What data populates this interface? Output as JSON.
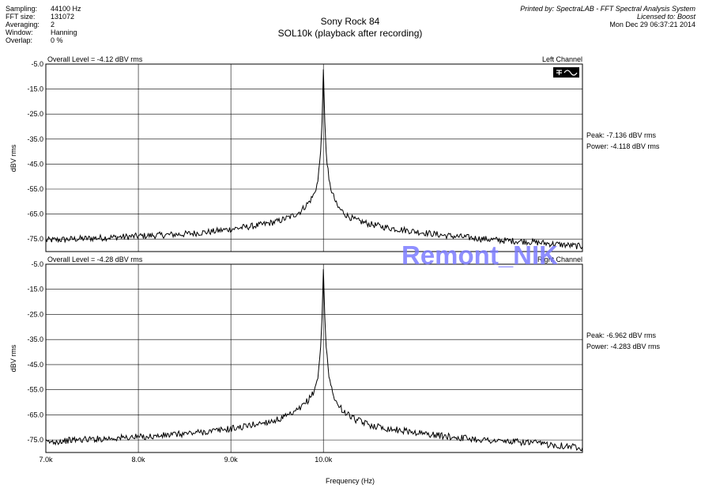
{
  "header": {
    "params": [
      {
        "label": "Sampling:",
        "value": "44100 Hz"
      },
      {
        "label": "FFT size:",
        "value": "131072"
      },
      {
        "label": "Averaging:",
        "value": "2"
      },
      {
        "label": "Window:",
        "value": "Hanning"
      },
      {
        "label": "Overlap:",
        "value": "0 %"
      }
    ],
    "title": "Sony Rock 84",
    "subtitle": "SOL10k (playback after recording)",
    "printed_by": "Printed by: SpectraLAB - FFT Spectral Analysis System",
    "licensed_to": "Licensed to: Boost",
    "timestamp": "Mon Dec 29 06:37:21 2014"
  },
  "watermark": "Remont_NIK",
  "colors": {
    "trace": "#000000",
    "grid": "#000000",
    "watermark": "#7b7bff"
  },
  "panel_icon": "spectrum-view-icon",
  "chart_data": [
    {
      "type": "line",
      "channel": "Left Channel",
      "overall_level": "Overall Level = -4.12 dBV rms",
      "ylabel": "dBV rms",
      "xlabel": "",
      "xlim": [
        7000,
        12800
      ],
      "ylim": [
        -80,
        -5
      ],
      "yticks": [
        "-5.0",
        "-15.0",
        "-25.0",
        "-35.0",
        "-45.0",
        "-55.0",
        "-65.0",
        "-75.0"
      ],
      "xticks": [],
      "grid": true,
      "peak_text": "Peak: -7.136 dBV rms",
      "power_text": "Power: -4.118 dBV rms",
      "series": [
        {
          "x": [
            7000,
            7300,
            7600,
            7900,
            8200,
            8500,
            8800,
            9100,
            9300,
            9500,
            9650,
            9750,
            9850,
            9900,
            9940,
            9970,
            9985,
            10000,
            10015,
            10030,
            10060,
            10100,
            10150,
            10250,
            10350,
            10500,
            10700,
            11000,
            11300,
            11600,
            11900,
            12200,
            12500,
            12800
          ],
          "y": [
            -75.5,
            -75,
            -74.5,
            -74,
            -73.5,
            -73,
            -72,
            -70.5,
            -69.5,
            -68,
            -66,
            -64,
            -60,
            -57,
            -52,
            -40,
            -28,
            -7.1,
            -28,
            -40,
            -52,
            -57,
            -62,
            -65.5,
            -67.5,
            -69,
            -70.5,
            -72,
            -73.5,
            -74.5,
            -75.5,
            -76,
            -77,
            -78
          ]
        }
      ]
    },
    {
      "type": "line",
      "channel": "Right Channel",
      "overall_level": "Overall Level = -4.28 dBV rms",
      "ylabel": "dBV rms",
      "xlabel": "Frequency (Hz)",
      "xlim": [
        7000,
        12800
      ],
      "ylim": [
        -80,
        -5
      ],
      "yticks": [
        "-5.0",
        "-15.0",
        "-25.0",
        "-35.0",
        "-45.0",
        "-55.0",
        "-65.0",
        "-75.0"
      ],
      "xticks": [
        "7.0k",
        "8.0k",
        "9.0k",
        "10.0k"
      ],
      "grid": true,
      "peak_text": "Peak: -6.962 dBV rms",
      "power_text": "Power: -4.283 dBV rms",
      "series": [
        {
          "x": [
            7000,
            7300,
            7600,
            7900,
            8200,
            8500,
            8800,
            9100,
            9300,
            9500,
            9650,
            9750,
            9850,
            9900,
            9940,
            9970,
            9985,
            10000,
            10015,
            10030,
            10060,
            10100,
            10150,
            10250,
            10350,
            10500,
            10700,
            11000,
            11300,
            11600,
            11900,
            12200,
            12500,
            12800
          ],
          "y": [
            -76,
            -75,
            -74.5,
            -74,
            -73.5,
            -72.5,
            -71.5,
            -70,
            -68.5,
            -67,
            -65,
            -62.5,
            -58.5,
            -55.5,
            -50,
            -38,
            -26,
            -7.0,
            -26,
            -38,
            -50,
            -56,
            -61,
            -64.5,
            -67,
            -69,
            -70.5,
            -72,
            -73.5,
            -74.5,
            -75.5,
            -76,
            -77,
            -78
          ]
        }
      ]
    }
  ]
}
